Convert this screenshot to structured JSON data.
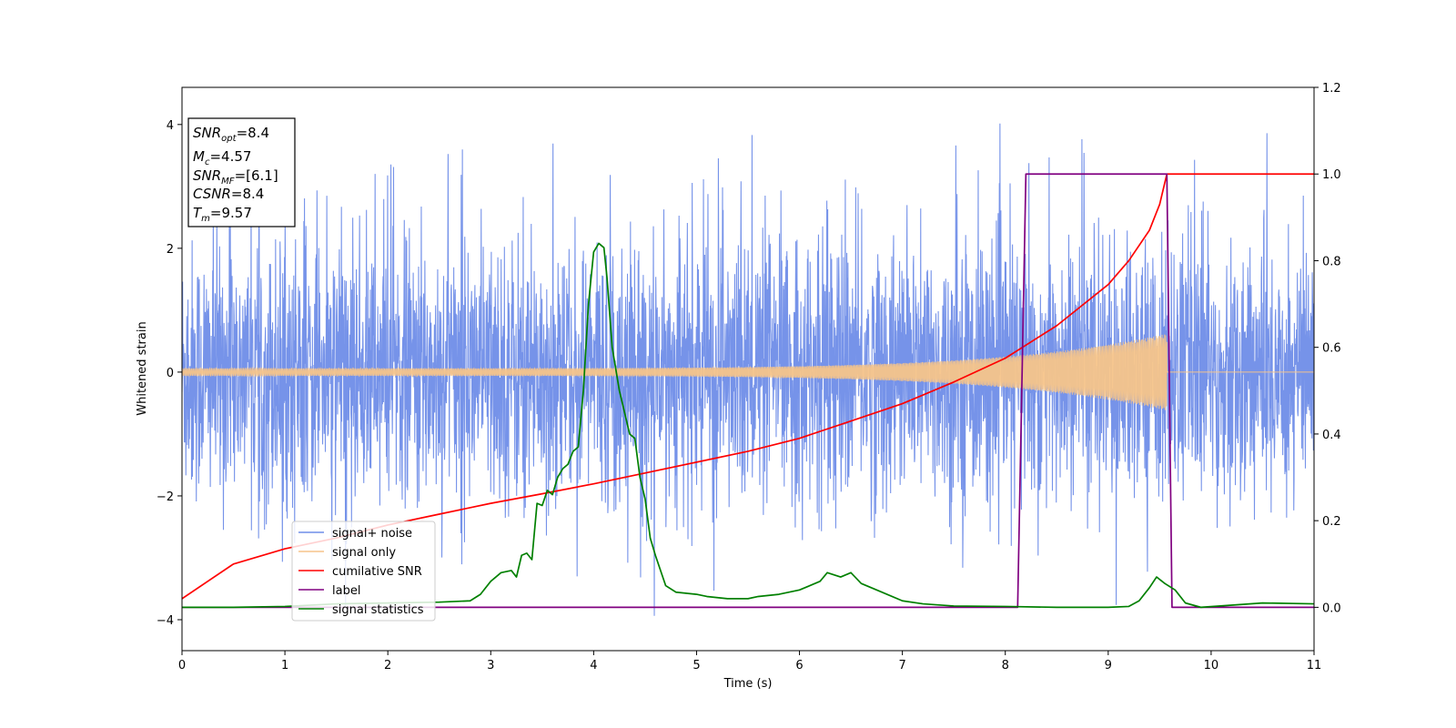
{
  "chart_data": {
    "type": "line",
    "title": "",
    "xlabel": "Time (s)",
    "ylabel": "Whitened strain",
    "xlim": [
      0,
      11
    ],
    "ylim": [
      -4.5,
      4.6
    ],
    "y2lim": [
      -0.1,
      1.2
    ],
    "x_ticks": [
      "0",
      "1",
      "2",
      "3",
      "4",
      "5",
      "6",
      "7",
      "8",
      "9",
      "10",
      "11"
    ],
    "y_ticks": [
      "−4",
      "−2",
      "0",
      "2",
      "4"
    ],
    "y2_ticks": [
      "0.0",
      "0.2",
      "0.4",
      "0.6",
      "0.8",
      "1.0",
      "1.2"
    ],
    "grid": false,
    "legend_position": "lower-left",
    "annotation": {
      "snr_opt": {
        "name": "SNR",
        "sub": "opt",
        "value": "=8.4"
      },
      "mc": {
        "name": "M",
        "sub": "c",
        "value": "=4.57"
      },
      "snr_mf": {
        "name": "SNR",
        "sub": "MF",
        "value": "=[6.1]"
      },
      "csnr": {
        "name": "CSNR",
        "value": "=8.4"
      },
      "tm": {
        "name": "T",
        "sub": "m",
        "value": "=9.57"
      }
    },
    "series": [
      {
        "name": "signal+ noise",
        "color": "#6f8de8",
        "axis": "left",
        "description_values": {
          "noise_std": 1.05,
          "max": 4.18,
          "min": -4.12
        }
      },
      {
        "name": "signal only",
        "color": "#f5c48a",
        "axis": "left",
        "chirp": {
          "t_start": 0,
          "t_merge": 9.57,
          "amp_start": 0.06,
          "amp_merge": 0.62
        }
      },
      {
        "name": "cumilative SNR",
        "color": "#ff0000",
        "axis": "right",
        "x": [
          0,
          0.5,
          1,
          1.5,
          2,
          2.5,
          3,
          3.5,
          4,
          4.5,
          5,
          5.5,
          6,
          6.5,
          7,
          7.5,
          8,
          8.5,
          9,
          9.2,
          9.4,
          9.5,
          9.57,
          10,
          10.5,
          11
        ],
        "values": [
          0.02,
          0.1,
          0.135,
          0.16,
          0.19,
          0.215,
          0.24,
          0.262,
          0.285,
          0.31,
          0.335,
          0.36,
          0.39,
          0.43,
          0.47,
          0.52,
          0.575,
          0.65,
          0.745,
          0.8,
          0.87,
          0.93,
          1.0,
          1.0,
          1.0,
          1.0
        ]
      },
      {
        "name": "label",
        "color": "#800080",
        "axis": "right",
        "x": [
          0,
          8.12,
          8.2,
          9.57,
          9.62,
          11
        ],
        "values": [
          0,
          0,
          1,
          1,
          0,
          0
        ]
      },
      {
        "name": "signal statistics",
        "color": "#008000",
        "axis": "right",
        "x": [
          0,
          0.5,
          1,
          1.5,
          2,
          2.5,
          2.8,
          2.9,
          3,
          3.1,
          3.2,
          3.25,
          3.3,
          3.35,
          3.4,
          3.45,
          3.5,
          3.55,
          3.6,
          3.65,
          3.7,
          3.75,
          3.8,
          3.85,
          3.9,
          3.95,
          4.0,
          4.05,
          4.1,
          4.13,
          4.18,
          4.25,
          4.3,
          4.35,
          4.4,
          4.45,
          4.5,
          4.55,
          4.6,
          4.7,
          4.8,
          5.0,
          5.1,
          5.3,
          5.5,
          5.6,
          5.8,
          6.0,
          6.2,
          6.27,
          6.4,
          6.5,
          6.6,
          6.8,
          7.0,
          7.2,
          7.5,
          8.0,
          8.5,
          9.0,
          9.2,
          9.3,
          9.4,
          9.47,
          9.55,
          9.65,
          9.75,
          9.9,
          10.2,
          10.5,
          11.0
        ],
        "values": [
          0.0,
          0.0,
          0.002,
          0.008,
          0.01,
          0.012,
          0.015,
          0.03,
          0.06,
          0.08,
          0.085,
          0.07,
          0.12,
          0.125,
          0.11,
          0.24,
          0.235,
          0.27,
          0.26,
          0.3,
          0.32,
          0.33,
          0.36,
          0.37,
          0.5,
          0.7,
          0.82,
          0.84,
          0.83,
          0.76,
          0.6,
          0.5,
          0.45,
          0.4,
          0.39,
          0.3,
          0.25,
          0.16,
          0.12,
          0.05,
          0.035,
          0.03,
          0.025,
          0.02,
          0.02,
          0.025,
          0.03,
          0.04,
          0.06,
          0.08,
          0.07,
          0.08,
          0.055,
          0.035,
          0.015,
          0.008,
          0.003,
          0.002,
          0.0,
          0.0,
          0.002,
          0.015,
          0.045,
          0.07,
          0.055,
          0.04,
          0.01,
          0.0,
          0.005,
          0.01,
          0.008
        ]
      }
    ]
  }
}
